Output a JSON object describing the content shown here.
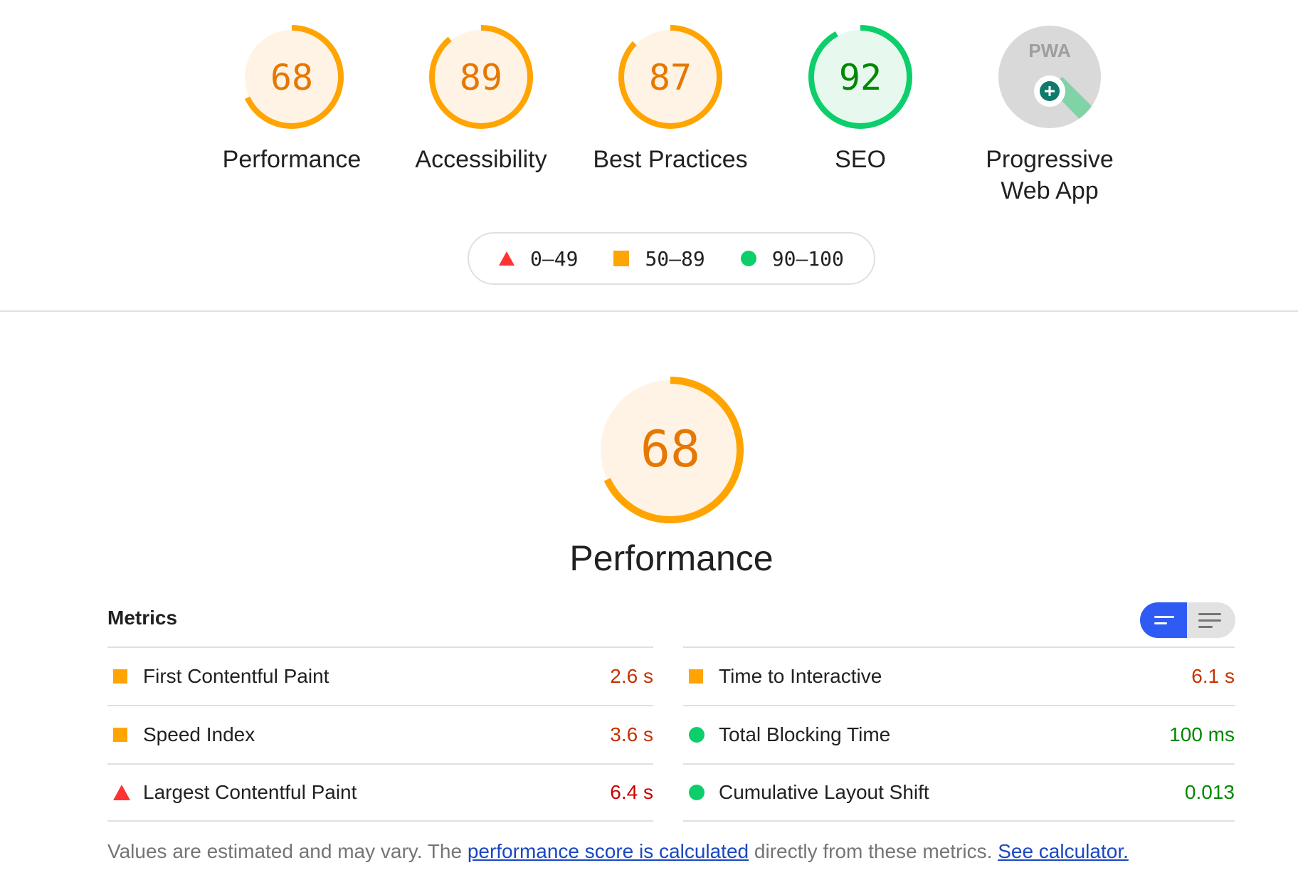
{
  "colors": {
    "fail": "#ff3333",
    "average": "#ffa400",
    "pass": "#0cce6b",
    "average_text": "#e67700",
    "pass_text": "#008800",
    "fail_text": "#cc0000",
    "average_bg": "#fff3e5",
    "pass_bg": "#e7f8ee",
    "toggle_active": "#2f5bf5"
  },
  "categories": [
    {
      "score": 68,
      "label": "Performance",
      "rating": "average"
    },
    {
      "score": 89,
      "label": "Accessibility",
      "rating": "average"
    },
    {
      "score": 87,
      "label": "Best Practices",
      "rating": "average"
    },
    {
      "score": 92,
      "label": "SEO",
      "rating": "pass"
    },
    {
      "score": null,
      "label_line1": "Progressive",
      "label_line2": "Web App",
      "badge_text": "PWA"
    }
  ],
  "legend": {
    "fail": "0–49",
    "average": "50–89",
    "pass": "90–100"
  },
  "main": {
    "score": 68,
    "title": "Performance"
  },
  "metrics": {
    "title": "Metrics",
    "left": [
      {
        "name": "First Contentful Paint",
        "value": "2.6 s",
        "rating": "average"
      },
      {
        "name": "Speed Index",
        "value": "3.6 s",
        "rating": "average"
      },
      {
        "name": "Largest Contentful Paint",
        "value": "6.4 s",
        "rating": "fail"
      }
    ],
    "right": [
      {
        "name": "Time to Interactive",
        "value": "6.1 s",
        "rating": "average"
      },
      {
        "name": "Total Blocking Time",
        "value": "100 ms",
        "rating": "pass"
      },
      {
        "name": "Cumulative Layout Shift",
        "value": "0.013",
        "rating": "pass"
      }
    ]
  },
  "footer": {
    "text1": "Values are estimated and may vary. The ",
    "link1": "performance score is calculated",
    "text2": " directly from these metrics. ",
    "link2": "See calculator."
  }
}
